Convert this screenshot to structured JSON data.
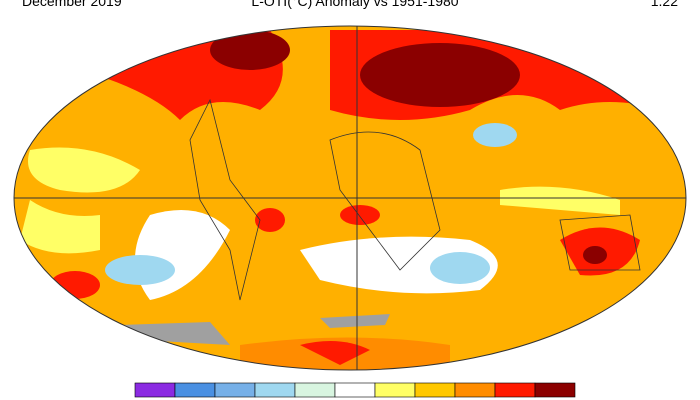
{
  "header": {
    "left": "December 2019",
    "center": "L-OTI(°C) Anomaly vs 1951-1980",
    "right": "1.22"
  }
}
